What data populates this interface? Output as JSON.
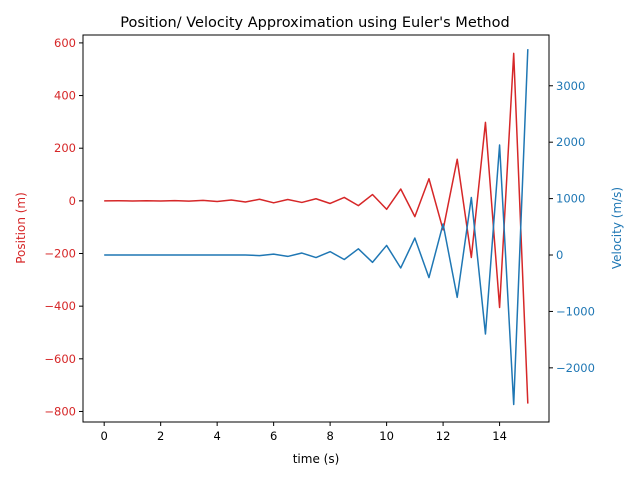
{
  "chart_data": {
    "type": "line",
    "title": "Position/ Velocity Approximation using Euler's Method",
    "xlabel": "time (s)",
    "ylabel_left": "Position (m)",
    "ylabel_right": "Velocity (m/s)",
    "xlim": [
      -0.75,
      15.75
    ],
    "ylim_left": [
      -840,
      630
    ],
    "ylim_right": [
      -2960,
      3900
    ],
    "x_ticks": [
      0,
      2,
      4,
      6,
      8,
      10,
      12,
      14
    ],
    "y_left_ticks": [
      -800,
      -600,
      -400,
      -200,
      0,
      200,
      400,
      600
    ],
    "y_right_ticks": [
      -2000,
      -1000,
      0,
      1000,
      2000,
      3000
    ],
    "grid": false,
    "legend": "none",
    "colors": {
      "position": "#d62728",
      "velocity": "#1f77b4"
    },
    "x": [
      0,
      0.5,
      1,
      1.5,
      2,
      2.5,
      3,
      3.5,
      4,
      4.5,
      5,
      5.5,
      6,
      6.5,
      7,
      7.5,
      8,
      8.5,
      9,
      9.5,
      10,
      10.5,
      11,
      11.5,
      12,
      12.5,
      13,
      13.5,
      14,
      14.5,
      15
    ],
    "series": [
      {
        "axis": "left",
        "color": "#d62728",
        "values": [
          0,
          0.2,
          -0.3,
          0.5,
          -0.6,
          0.9,
          -1.2,
          1.8,
          -2.4,
          3.3,
          -4.5,
          6,
          -7.5,
          5,
          -6,
          8,
          -10,
          13,
          -18,
          24,
          -32,
          45,
          -60,
          84,
          -110,
          158,
          -215,
          298,
          -405,
          560,
          -770
        ]
      },
      {
        "axis": "right",
        "color": "#1f77b4",
        "values": [
          0,
          0,
          0,
          0,
          0,
          0,
          0,
          0,
          0,
          0,
          0,
          -10,
          15,
          -25,
          35,
          -45,
          60,
          -80,
          110,
          -130,
          170,
          -230,
          300,
          -400,
          550,
          -750,
          1020,
          -1400,
          1950,
          -2650,
          3650
        ]
      }
    ]
  }
}
